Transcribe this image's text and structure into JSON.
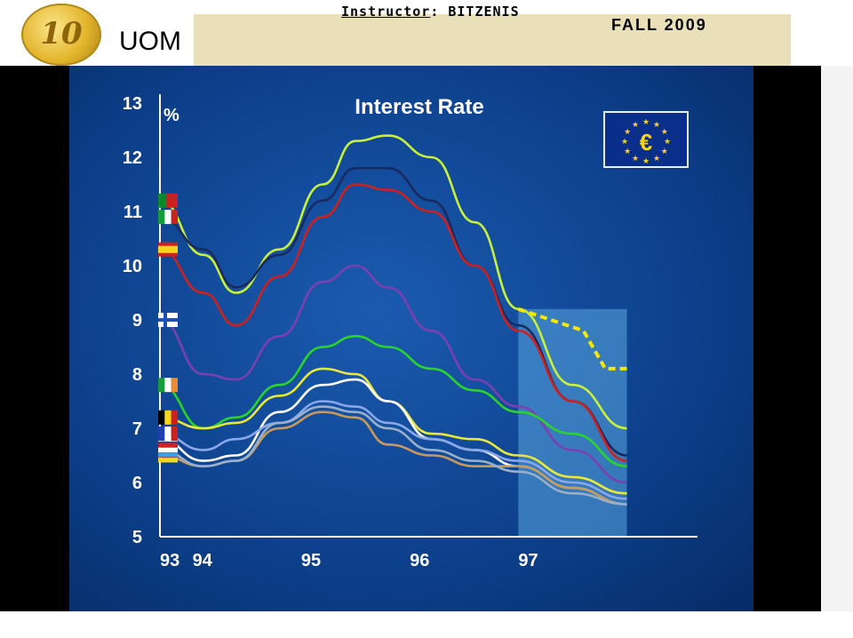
{
  "header": {
    "coin_label": "10",
    "logo_text": "UOM",
    "instructor_label": "Instructor",
    "instructor_name": ": BITZENIS",
    "semester": "FALL 2009"
  },
  "chart_data": {
    "type": "line",
    "title": "Interest Rate",
    "ylabel": "%",
    "xlabel": "",
    "ylim": [
      5,
      13
    ],
    "xlim": [
      1993,
      1997.95
    ],
    "y_ticks": [
      5,
      6,
      7,
      8,
      9,
      10,
      11,
      12,
      13
    ],
    "x_ticks": [
      {
        "value": 1993.0,
        "label": "93"
      },
      {
        "value": 1993.3,
        "label": "94"
      },
      {
        "value": 1994.3,
        "label": "95"
      },
      {
        "value": 1995.3,
        "label": "96"
      },
      {
        "value": 1996.3,
        "label": "97"
      }
    ],
    "emblem": "euro-flag",
    "highlight_region": [
      1996.3,
      1997.3
    ],
    "colors": {
      "background": "#0b3e86",
      "highlight": "#5aa7e0",
      "axis": "#ffffff"
    },
    "series": [
      {
        "flag": "portugal-flag",
        "color": "#c8f03a",
        "x": [
          1993.0,
          1993.4,
          1993.7,
          1994.1,
          1994.5,
          1994.8,
          1995.1,
          1995.5,
          1995.9,
          1996.3,
          1996.8,
          1997.3
        ],
        "y": [
          11.2,
          10.2,
          9.5,
          10.3,
          11.5,
          12.3,
          12.4,
          12.0,
          10.8,
          9.2,
          7.8,
          7.0
        ]
      },
      {
        "flag": "italy-flag",
        "color": "#1a2a60",
        "x": [
          1993.0,
          1993.4,
          1993.7,
          1994.1,
          1994.5,
          1994.8,
          1995.1,
          1995.5,
          1995.9,
          1996.3,
          1996.8,
          1997.3
        ],
        "y": [
          10.9,
          10.3,
          9.6,
          10.2,
          11.2,
          11.8,
          11.8,
          11.2,
          10.0,
          8.9,
          7.5,
          6.5
        ]
      },
      {
        "flag": "spain-flag",
        "color": "#d0201c",
        "x": [
          1993.0,
          1993.4,
          1993.7,
          1994.1,
          1994.5,
          1994.8,
          1995.1,
          1995.5,
          1995.9,
          1996.3,
          1996.8,
          1997.3
        ],
        "y": [
          10.3,
          9.5,
          8.9,
          9.8,
          10.9,
          11.5,
          11.4,
          11.0,
          10.0,
          8.8,
          7.5,
          6.4
        ]
      },
      {
        "flag": "finland-flag",
        "color": "#7a3fb0",
        "x": [
          1993.0,
          1993.4,
          1993.7,
          1994.1,
          1994.5,
          1994.8,
          1995.1,
          1995.5,
          1995.9,
          1996.3,
          1996.8,
          1997.3
        ],
        "y": [
          9.0,
          8.0,
          7.9,
          8.7,
          9.7,
          10.0,
          9.6,
          8.8,
          7.9,
          7.4,
          6.6,
          6.0
        ]
      },
      {
        "flag": "ireland-flag",
        "color": "#2bd42b",
        "x": [
          1993.0,
          1993.4,
          1993.7,
          1994.1,
          1994.5,
          1994.8,
          1995.1,
          1995.5,
          1995.9,
          1996.3,
          1996.8,
          1997.3
        ],
        "y": [
          7.8,
          7.0,
          7.2,
          7.8,
          8.5,
          8.7,
          8.5,
          8.1,
          7.7,
          7.3,
          6.9,
          6.3
        ]
      },
      {
        "flag": "belgium-flag",
        "color": "#e8e838",
        "x": [
          1993.0,
          1993.4,
          1993.7,
          1994.1,
          1994.5,
          1994.8,
          1995.1,
          1995.5,
          1995.9,
          1996.3,
          1996.8,
          1997.3
        ],
        "y": [
          7.2,
          7.0,
          7.1,
          7.6,
          8.1,
          8.0,
          7.5,
          6.9,
          6.8,
          6.5,
          6.1,
          5.8
        ]
      },
      {
        "flag": "netherlands-flag",
        "color": "#ffffff",
        "x": [
          1993.0,
          1993.4,
          1993.7,
          1994.1,
          1994.5,
          1994.8,
          1995.1,
          1995.5,
          1995.9,
          1996.3,
          1996.8,
          1997.3
        ],
        "y": [
          6.8,
          6.4,
          6.5,
          7.3,
          7.8,
          7.9,
          7.5,
          6.8,
          6.6,
          6.3,
          5.9,
          5.6
        ]
      },
      {
        "flag": "france-flag",
        "color": "#8aa8e8",
        "x": [
          1993.0,
          1993.4,
          1993.7,
          1994.1,
          1994.5,
          1994.8,
          1995.1,
          1995.5,
          1995.9,
          1996.3,
          1996.8,
          1997.3
        ],
        "y": [
          6.9,
          6.6,
          6.8,
          7.1,
          7.5,
          7.4,
          7.1,
          6.8,
          6.6,
          6.4,
          6.0,
          5.7
        ]
      },
      {
        "flag": "germany-flag",
        "color": "#c89a5a",
        "x": [
          1993.0,
          1993.4,
          1993.7,
          1994.1,
          1994.5,
          1994.8,
          1995.1,
          1995.5,
          1995.9,
          1996.3,
          1996.8,
          1997.3
        ],
        "y": [
          6.5,
          6.3,
          6.4,
          7.0,
          7.3,
          7.2,
          6.7,
          6.5,
          6.3,
          6.3,
          5.9,
          5.6
        ]
      },
      {
        "flag": "luxembourg-flag",
        "color": "#9ab0c8",
        "x": [
          1993.0,
          1993.4,
          1993.7,
          1994.1,
          1994.5,
          1994.8,
          1995.1,
          1995.5,
          1995.9,
          1996.3,
          1996.8,
          1997.3
        ],
        "y": [
          6.6,
          6.3,
          6.4,
          7.1,
          7.4,
          7.3,
          7.0,
          6.6,
          6.4,
          6.2,
          5.8,
          5.6
        ]
      }
    ],
    "convergence_line": {
      "color": "#f5e800",
      "x": [
        1996.3,
        1996.9,
        1997.1,
        1997.3
      ],
      "y": [
        9.2,
        8.8,
        8.1,
        8.1
      ]
    }
  }
}
